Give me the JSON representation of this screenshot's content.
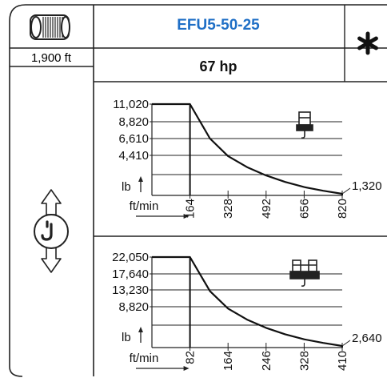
{
  "drum": {
    "rope_length": "1,900 ft",
    "icon": "rope-drum-icon"
  },
  "header": {
    "model": "EFU5-50-25",
    "power": "67 hp",
    "model_color": "#1f6fc6",
    "asterisk_icon": "asterisk-icon"
  },
  "side_icon": "hoist-up-down-icon",
  "chart_data": [
    {
      "type": "line",
      "ylabel": "lb",
      "xlabel": "ft/min",
      "y_ticks": [
        "11,020",
        "8,820",
        "6,610",
        "4,410"
      ],
      "x_ticks": [
        "164",
        "328",
        "492",
        "656",
        "820"
      ],
      "x": [
        0,
        164,
        250,
        328,
        410,
        492,
        574,
        656,
        738,
        820
      ],
      "y": [
        11020,
        11020,
        7300,
        5400,
        4200,
        3300,
        2600,
        2050,
        1650,
        1320
      ],
      "end_label": "1,320",
      "icon": "single-hook-icon"
    },
    {
      "type": "line",
      "ylabel": "lb",
      "xlabel": "ft/min",
      "y_ticks": [
        "22,050",
        "17,640",
        "13,230",
        "8,820"
      ],
      "x_ticks": [
        "82",
        "164",
        "246",
        "328",
        "410"
      ],
      "x": [
        0,
        82,
        125,
        164,
        205,
        246,
        287,
        328,
        369,
        410
      ],
      "y": [
        22050,
        22050,
        14600,
        10800,
        8400,
        6600,
        5200,
        4100,
        3300,
        2640
      ],
      "end_label": "2,640",
      "icon": "double-hook-icon"
    }
  ]
}
